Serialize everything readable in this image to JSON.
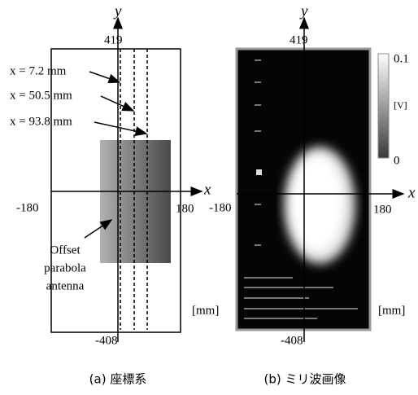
{
  "panel_a": {
    "y_label": "y",
    "x_label": "x",
    "y_top": "419",
    "y_bottom": "-408",
    "x_left": "-180",
    "x_right": "180",
    "cuts": [
      "x = 7.2 mm",
      "x = 50.5 mm",
      "x = 93.8 mm"
    ],
    "antenna": [
      "Offset",
      "parabola",
      "antenna"
    ],
    "unit": "[mm]",
    "caption": "(a) 座標系"
  },
  "panel_b": {
    "y_label": "y",
    "x_label": "x",
    "y_top": "419",
    "y_bottom": "-408",
    "x_left": "-180",
    "x_right": "180",
    "colorbar_max": "0.1",
    "colorbar_unit": "[V]",
    "colorbar_min": "0",
    "unit": "[mm]",
    "caption": "(b) ミリ波画像"
  }
}
